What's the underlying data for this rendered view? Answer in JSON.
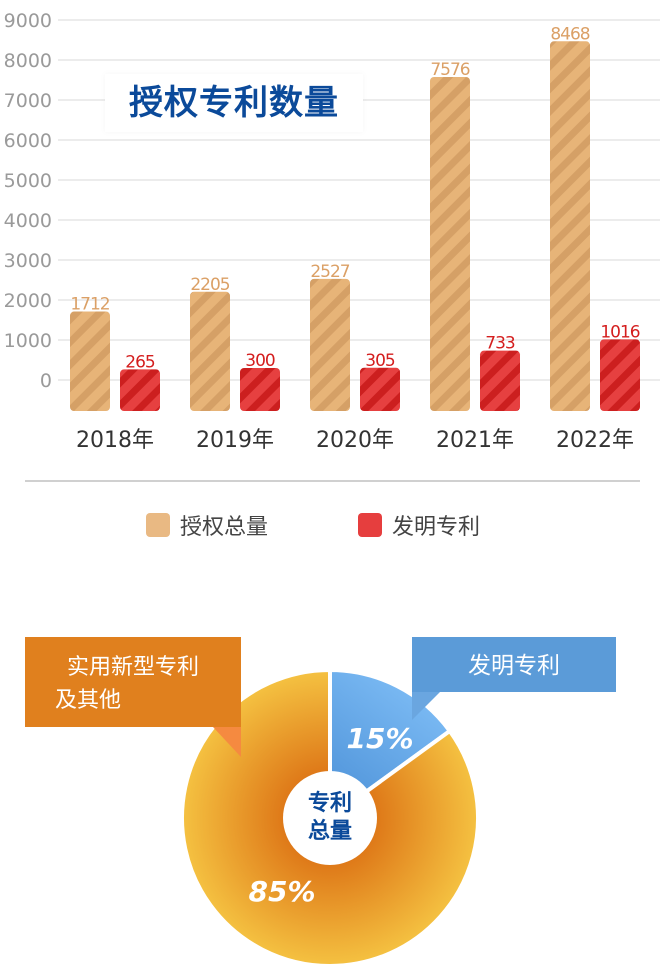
{
  "chart_data": [
    {
      "type": "bar",
      "title": "授权专利数量",
      "categories": [
        "2018年",
        "2019年",
        "2020年",
        "2021年",
        "2022年"
      ],
      "series": [
        {
          "name": "授权总量",
          "values": [
            1712,
            2205,
            2527,
            7576,
            8468
          ],
          "color": "#e3ad6c"
        },
        {
          "name": "发明专利",
          "values": [
            265,
            300,
            305,
            733,
            1016
          ],
          "color": "#d42a2a"
        }
      ],
      "yticks": [
        0,
        1000,
        2000,
        3000,
        4000,
        5000,
        6000,
        7000,
        8000,
        9000
      ],
      "ylim": [
        0,
        9000
      ],
      "grid": true,
      "legend": "bottom"
    },
    {
      "type": "pie",
      "center_label": [
        "专利",
        "总量"
      ],
      "slices": [
        {
          "name": "发明专利",
          "value": 15,
          "label": "15%",
          "color": "#5b9bd8"
        },
        {
          "name": "实用新型专利及其他",
          "label_lines": [
            "实用新型专利",
            "及其他"
          ],
          "value": 85,
          "label": "85%",
          "color": "#e6891f"
        }
      ]
    }
  ]
}
